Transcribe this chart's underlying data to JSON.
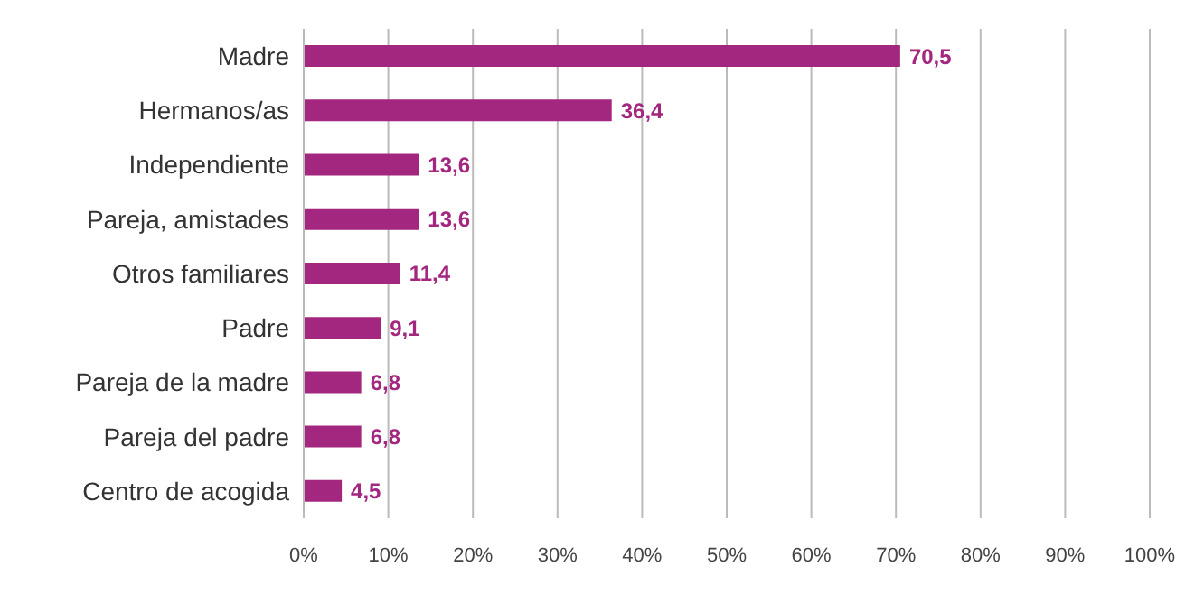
{
  "chart_data": {
    "type": "bar",
    "orientation": "horizontal",
    "categories": [
      "Madre",
      "Hermanos/as",
      "Independiente",
      "Pareja, amistades",
      "Otros familiares",
      "Padre",
      "Pareja de la madre",
      "Pareja del padre",
      "Centro de acogida"
    ],
    "values": [
      70.5,
      36.4,
      13.6,
      13.6,
      11.4,
      9.1,
      6.8,
      6.8,
      4.5
    ],
    "value_labels": [
      "70,5",
      "36,4",
      "13,6",
      "13,6",
      "11,4",
      "9,1",
      "6,8",
      "6,8",
      "4,5"
    ],
    "color": "#a3267f",
    "xlim": [
      0,
      100
    ],
    "xticks": [
      {
        "value": 0,
        "label": "0%"
      },
      {
        "value": 10,
        "label": "10%"
      },
      {
        "value": 20,
        "label": "20%"
      },
      {
        "value": 30,
        "label": "30%"
      },
      {
        "value": 40,
        "label": "40%"
      },
      {
        "value": 50,
        "label": "50%"
      },
      {
        "value": 60,
        "label": "60%"
      },
      {
        "value": 70,
        "label": "70%"
      },
      {
        "value": 80,
        "label": "80%"
      },
      {
        "value": 90,
        "label": "90%"
      },
      {
        "value": 100,
        "label": "100%"
      }
    ],
    "grid": "x"
  }
}
